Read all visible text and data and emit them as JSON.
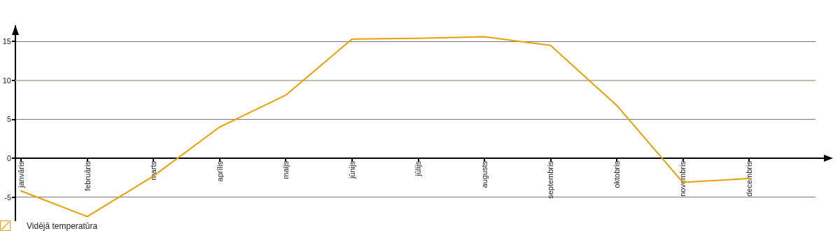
{
  "chart_data": {
    "type": "line",
    "categories": [
      "janvāris",
      "februāris",
      "marts",
      "aprīlis",
      "maijs",
      "jūnijs",
      "jūlijs",
      "augusts",
      "septembris",
      "oktobris",
      "novembris",
      "decembris"
    ],
    "series": [
      {
        "name": "Vidējā temperatūra",
        "color": "#e9a000",
        "values": [
          -4.2,
          -7.5,
          -2.3,
          4.0,
          8.1,
          15.3,
          15.4,
          15.6,
          14.5,
          6.8,
          -3.1,
          -2.6
        ]
      }
    ],
    "ylim": [
      -8,
      17
    ],
    "yticks": [
      -5,
      0,
      5,
      10,
      15
    ],
    "grid": "y",
    "legend": "bottom left",
    "marker": "none",
    "line_style": "solid",
    "ref_lines": [
      {
        "axis": "y",
        "value": 10,
        "color": "#bcbfae"
      }
    ]
  }
}
